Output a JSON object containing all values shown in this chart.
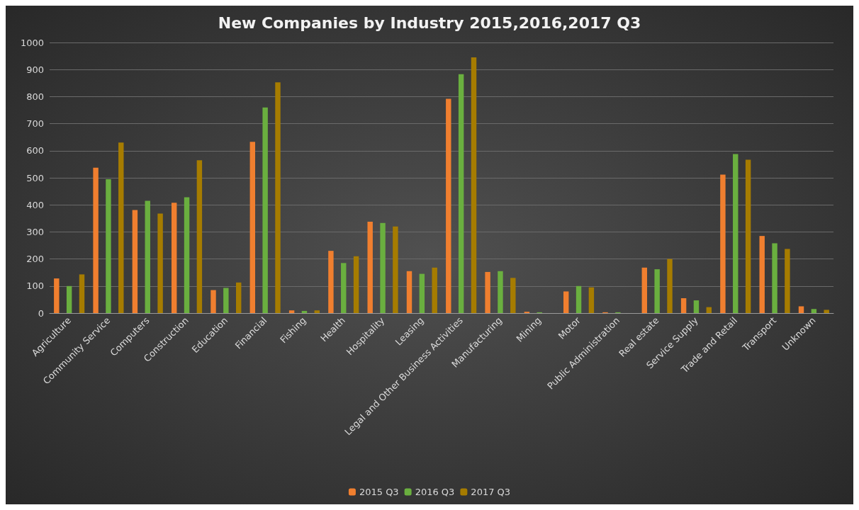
{
  "chart_data": {
    "type": "bar",
    "title": "New Companies by Industry 2015,2016,2017 Q3",
    "categories": [
      "Agriculture",
      "Community Service",
      "Computers",
      "Construction",
      "Education",
      "Financial",
      "Fishing",
      "Health",
      "Hospitality",
      "Leasing",
      "Legal and Other Business Activities",
      "Manufacturing",
      "Mining",
      "Motor",
      "Public Administration",
      "Real estate",
      "Service Supply",
      "Trade and Retail",
      "Transport",
      "Unknown"
    ],
    "series": [
      {
        "name": "2015 Q3",
        "color": "#f07f2f",
        "values": [
          128,
          537,
          381,
          408,
          85,
          633,
          10,
          230,
          338,
          155,
          792,
          152,
          5,
          80,
          3,
          168,
          55,
          512,
          285,
          25
        ]
      },
      {
        "name": "2016 Q3",
        "color": "#6aaf3f",
        "values": [
          100,
          495,
          415,
          428,
          93,
          760,
          8,
          185,
          333,
          145,
          883,
          155,
          3,
          100,
          3,
          162,
          47,
          588,
          258,
          15
        ]
      },
      {
        "name": "2017 Q3",
        "color": "#a67c00",
        "values": [
          143,
          630,
          368,
          565,
          113,
          853,
          10,
          210,
          320,
          168,
          945,
          130,
          null,
          95,
          null,
          200,
          22,
          567,
          237,
          12
        ]
      }
    ],
    "ylim": [
      0,
      1000
    ],
    "yticks": [
      0,
      100,
      200,
      300,
      400,
      500,
      600,
      700,
      800,
      900,
      1000
    ],
    "grid": "y",
    "legend": "bottom"
  }
}
